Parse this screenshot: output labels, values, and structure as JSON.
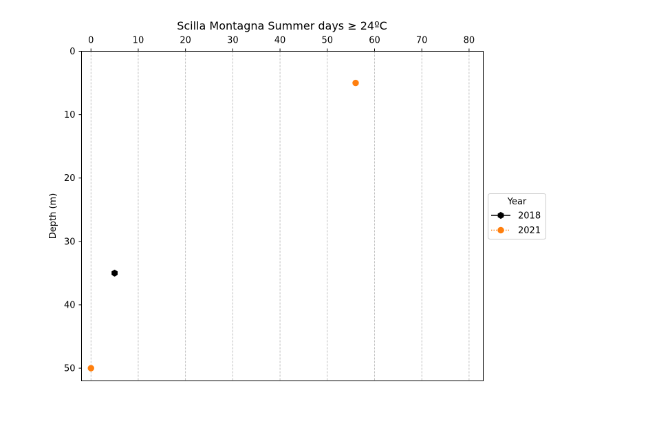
{
  "chart_data": {
    "type": "scatter",
    "title": "Scilla Montagna Summer days ≥ 24ºC",
    "xlabel": "",
    "ylabel": "Depth (m)",
    "xlim": [
      -2,
      83
    ],
    "ylim": [
      0,
      52
    ],
    "y_inverted": true,
    "x_axis_position": "top",
    "x_ticks": [
      0,
      10,
      20,
      30,
      40,
      50,
      60,
      70,
      80
    ],
    "y_ticks": [
      0,
      10,
      20,
      30,
      40,
      50
    ],
    "grid": "vertical dashed",
    "legend": {
      "title": "Year",
      "placement": "outside right, center"
    },
    "series": [
      {
        "name": "2018",
        "color": "#000000",
        "marker": "hexagon",
        "linestyle": "solid",
        "points": [
          {
            "x": 5,
            "y": 35
          }
        ]
      },
      {
        "name": "2021",
        "color": "#ff7f0e",
        "marker": "circle",
        "linestyle": "dotted",
        "points": [
          {
            "x": 56,
            "y": 5
          },
          {
            "x": 0,
            "y": 50
          }
        ]
      }
    ]
  }
}
